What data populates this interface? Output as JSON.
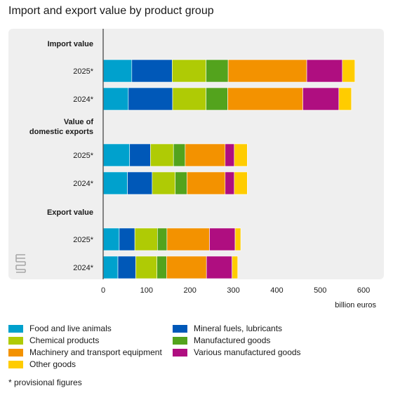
{
  "chart_data": {
    "type": "bar",
    "stacked": true,
    "orientation": "horizontal",
    "title": "Import and export value by product group",
    "xlabel": "billion euros",
    "xlim": [
      0,
      650
    ],
    "xticks": [
      0,
      100,
      200,
      300,
      400,
      500,
      600
    ],
    "grid": false,
    "legend_position": "bottom",
    "groups": [
      {
        "label": "Import value",
        "rows": [
          "2025*",
          "2024*"
        ]
      },
      {
        "label": "Value of domestic exports",
        "label_lines": [
          "Value of",
          "domestic exports"
        ],
        "rows": [
          "2025*",
          "2024*"
        ]
      },
      {
        "label": "Export value",
        "rows": [
          "2025*",
          "2024*"
        ]
      }
    ],
    "categories": [
      "Import value 2025*",
      "Import value 2024*",
      "Value of domestic exports 2025*",
      "Value of domestic exports 2024*",
      "Export value 2025*",
      "Export value 2024*"
    ],
    "series": [
      {
        "name": "Food and live animals",
        "color": "#00a1cd",
        "values": [
          66,
          58,
          61,
          56,
          37,
          34
        ]
      },
      {
        "name": "Mineral fuels, lubricants",
        "color": "#0058b8",
        "values": [
          93,
          102,
          48,
          57,
          36,
          41
        ]
      },
      {
        "name": "Chemical products",
        "color": "#afcb05",
        "values": [
          78,
          77,
          53,
          53,
          52,
          49
        ]
      },
      {
        "name": "Manufactured goods",
        "color": "#53a31d",
        "values": [
          51,
          50,
          27,
          27,
          22,
          22
        ]
      },
      {
        "name": "Machinery and transport equipment",
        "color": "#f39200",
        "values": [
          181,
          173,
          92,
          88,
          98,
          92
        ]
      },
      {
        "name": "Various manufactured goods",
        "color": "#af0e80",
        "values": [
          82,
          83,
          21,
          21,
          59,
          59
        ]
      },
      {
        "name": "Other goods",
        "color": "#ffcc00",
        "values": [
          29,
          29,
          30,
          30,
          13,
          13
        ]
      }
    ],
    "footnote": "* provisional figures"
  }
}
